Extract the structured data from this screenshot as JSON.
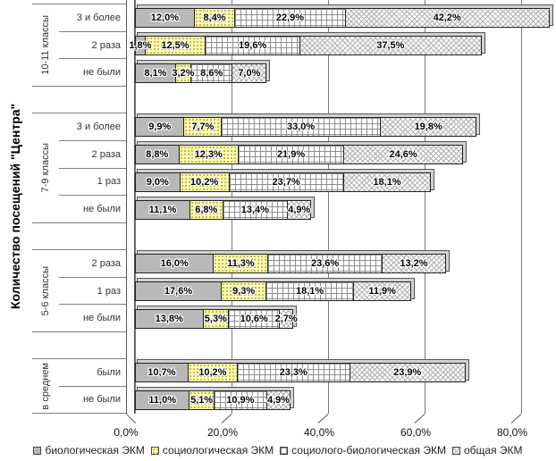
{
  "y_axis_title": "Количество посещений \"Центра\"",
  "chart_data": {
    "type": "bar",
    "orientation": "horizontal",
    "stacked": true,
    "unit": "percent",
    "grid": true,
    "legend_position": "bottom",
    "x_range": [
      0,
      80
    ],
    "x_ticks": [
      "0,0%",
      "20,0%",
      "40,0%",
      "60,0%",
      "80,0%"
    ],
    "series": [
      "биологическая ЭКМ",
      "социологическая ЭКМ",
      "социолого-биологическая ЭКМ",
      "общая ЭКМ"
    ],
    "series_colors": [
      "#b9b9b9",
      "#ffffa6",
      "#ffffff",
      "#ffffff"
    ],
    "series_patterns": [
      "solid",
      "dots",
      "grid",
      "diagonal-crosshatch"
    ],
    "groups": [
      {
        "label": "10-11 классы",
        "rows": [
          {
            "label": "3 и более",
            "values": [
              12.0,
              8.4,
              22.9,
              42.2
            ]
          },
          {
            "label": "2 раза",
            "values": [
              1.8,
              12.5,
              19.6,
              37.5
            ]
          },
          {
            "label": "не были",
            "values": [
              8.1,
              3.2,
              8.6,
              7.0
            ]
          }
        ]
      },
      {
        "label": "7-9 классы",
        "rows": [
          {
            "label": "3 и более",
            "values": [
              9.9,
              7.7,
              33.0,
              19.8
            ]
          },
          {
            "label": "2 раза",
            "values": [
              8.8,
              12.3,
              21.9,
              24.6
            ]
          },
          {
            "label": "1 раз",
            "values": [
              9.0,
              10.2,
              23.7,
              18.1
            ]
          },
          {
            "label": "не были",
            "values": [
              11.1,
              6.8,
              13.4,
              4.9
            ]
          }
        ]
      },
      {
        "label": "5-6 классы",
        "rows": [
          {
            "label": "2 раза",
            "values": [
              16.0,
              11.3,
              23.6,
              13.2
            ]
          },
          {
            "label": "1 раз",
            "values": [
              17.6,
              9.3,
              18.1,
              11.9
            ]
          },
          {
            "label": "не были",
            "values": [
              13.8,
              5.3,
              10.6,
              2.7
            ]
          }
        ]
      },
      {
        "label": "в среднем",
        "rows": [
          {
            "label": "были",
            "values": [
              10.7,
              10.2,
              23.3,
              23.9
            ]
          },
          {
            "label": "не были",
            "values": [
              11.0,
              5.1,
              10.9,
              4.9
            ]
          }
        ]
      }
    ]
  }
}
